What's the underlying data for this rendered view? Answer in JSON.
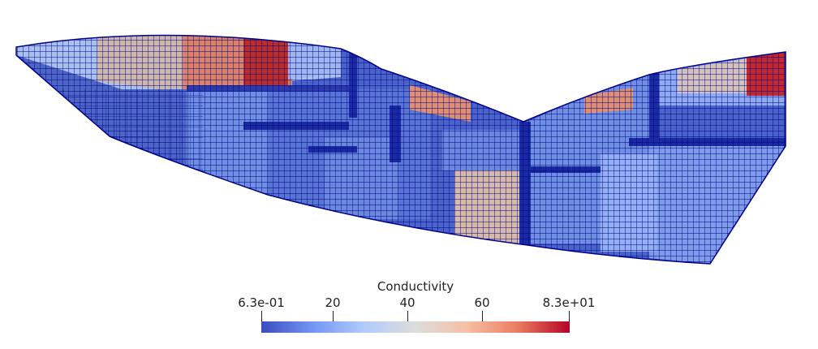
{
  "scalar_bar": {
    "title": "Conductivity",
    "ticks": [
      {
        "label": "6.3e-01",
        "value": 0.63
      },
      {
        "label": "20",
        "value": 20
      },
      {
        "label": "40",
        "value": 40
      },
      {
        "label": "60",
        "value": 60
      },
      {
        "label": "8.3e+01",
        "value": 83
      }
    ],
    "range": [
      0.63,
      83
    ],
    "colormap": [
      "#3b4cc0",
      "#7396f5",
      "#b0cbfc",
      "#dddddd",
      "#f6bfa6",
      "#ea7b60",
      "#b40426"
    ]
  },
  "mesh": {
    "edge_color": "#00008b",
    "base_color": "#4a63c8"
  }
}
